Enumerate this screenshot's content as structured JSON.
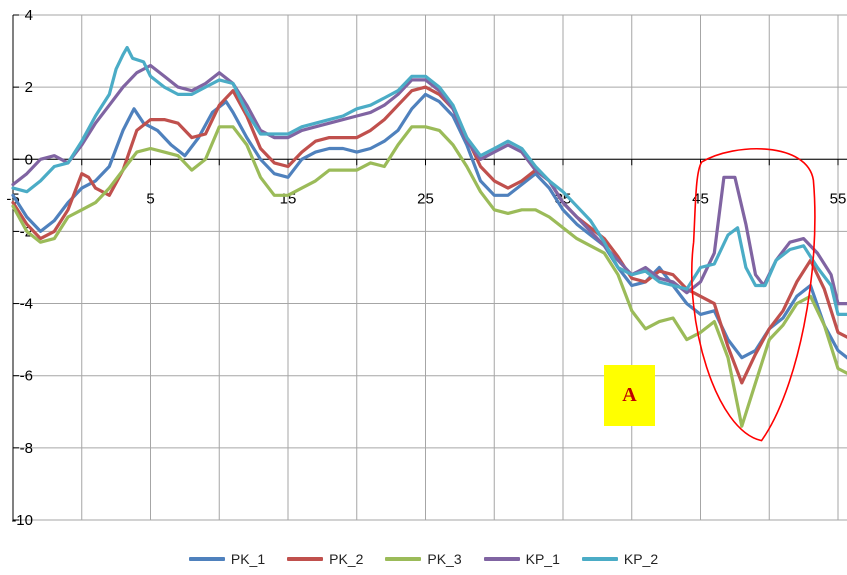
{
  "chart_data": {
    "type": "line",
    "xlim": [
      -5,
      55
    ],
    "ylim": [
      -10,
      4
    ],
    "x_ticks": [
      -5,
      5,
      15,
      25,
      35,
      45,
      55
    ],
    "y_ticks": [
      4,
      2,
      0,
      -2,
      -4,
      -6,
      -8,
      -10
    ],
    "x_tick_labels": [
      "-5",
      "5",
      "15",
      "25",
      "35",
      "45",
      "55"
    ],
    "y_tick_labels": [
      "4",
      "2",
      "0",
      "-2",
      "-4",
      "-6",
      "-8",
      "-10"
    ],
    "grid": true,
    "legend_position": "bottom",
    "annotation_label": "A",
    "highlight_region": {
      "x_range": [
        44.5,
        53.5
      ],
      "y_range": [
        -7.8,
        0.2
      ],
      "color": "#ff0000"
    },
    "series": [
      {
        "name": "PK_1",
        "color": "#4f81bd",
        "points": [
          [
            -5,
            -1
          ],
          [
            -4,
            -1.6
          ],
          [
            -3,
            -2.0
          ],
          [
            -2,
            -1.7
          ],
          [
            -1,
            -1.2
          ],
          [
            0,
            -0.8
          ],
          [
            1,
            -0.6
          ],
          [
            2,
            -0.2
          ],
          [
            3,
            0.8
          ],
          [
            3.8,
            1.4
          ],
          [
            4.5,
            1.0
          ],
          [
            5.5,
            0.8
          ],
          [
            6.5,
            0.4
          ],
          [
            7.5,
            0.1
          ],
          [
            8.5,
            0.6
          ],
          [
            9.5,
            1.3
          ],
          [
            10.5,
            1.6
          ],
          [
            11,
            1.3
          ],
          [
            12,
            0.6
          ],
          [
            13,
            0
          ],
          [
            14,
            -0.4
          ],
          [
            15,
            -0.5
          ],
          [
            16,
            0
          ],
          [
            17,
            0.2
          ],
          [
            18,
            0.3
          ],
          [
            19,
            0.3
          ],
          [
            20,
            0.2
          ],
          [
            21,
            0.3
          ],
          [
            22,
            0.5
          ],
          [
            23,
            0.8
          ],
          [
            24,
            1.4
          ],
          [
            25,
            1.8
          ],
          [
            26,
            1.6
          ],
          [
            27,
            1.2
          ],
          [
            28,
            0.4
          ],
          [
            29,
            -0.6
          ],
          [
            30,
            -1.0
          ],
          [
            31,
            -1.0
          ],
          [
            32,
            -0.7
          ],
          [
            33,
            -0.4
          ],
          [
            34,
            -0.8
          ],
          [
            35,
            -1.4
          ],
          [
            36,
            -1.8
          ],
          [
            37,
            -2.1
          ],
          [
            38,
            -2.4
          ],
          [
            39,
            -3.0
          ],
          [
            40,
            -3.5
          ],
          [
            41,
            -3.4
          ],
          [
            42,
            -3.0
          ],
          [
            43,
            -3.5
          ],
          [
            44,
            -4.0
          ],
          [
            45,
            -4.3
          ],
          [
            46,
            -4.2
          ],
          [
            47,
            -5.0
          ],
          [
            48,
            -5.5
          ],
          [
            49,
            -5.3
          ],
          [
            50,
            -4.7
          ],
          [
            51,
            -4.4
          ],
          [
            52,
            -3.8
          ],
          [
            53,
            -3.5
          ],
          [
            54,
            -4.6
          ],
          [
            55,
            -5.3
          ],
          [
            56,
            -5.6
          ]
        ]
      },
      {
        "name": "PK_2",
        "color": "#c0504d",
        "points": [
          [
            -5,
            -1.2
          ],
          [
            -4,
            -1.8
          ],
          [
            -3,
            -2.2
          ],
          [
            -2,
            -2.0
          ],
          [
            -1,
            -1.4
          ],
          [
            0,
            -0.4
          ],
          [
            0.5,
            -0.5
          ],
          [
            1,
            -0.8
          ],
          [
            2,
            -1.0
          ],
          [
            3,
            -0.3
          ],
          [
            4,
            0.8
          ],
          [
            5,
            1.1
          ],
          [
            6,
            1.1
          ],
          [
            7,
            1.0
          ],
          [
            8,
            0.6
          ],
          [
            9,
            0.7
          ],
          [
            10,
            1.5
          ],
          [
            11,
            1.9
          ],
          [
            12,
            1.2
          ],
          [
            13,
            0.3
          ],
          [
            14,
            -0.1
          ],
          [
            15,
            -0.2
          ],
          [
            16,
            0.2
          ],
          [
            17,
            0.5
          ],
          [
            18,
            0.6
          ],
          [
            19,
            0.6
          ],
          [
            20,
            0.6
          ],
          [
            21,
            0.8
          ],
          [
            22,
            1.1
          ],
          [
            23,
            1.5
          ],
          [
            24,
            1.9
          ],
          [
            25,
            2.0
          ],
          [
            26,
            1.8
          ],
          [
            27,
            1.4
          ],
          [
            28,
            0.6
          ],
          [
            29,
            -0.2
          ],
          [
            30,
            -0.6
          ],
          [
            31,
            -0.8
          ],
          [
            32,
            -0.6
          ],
          [
            33,
            -0.3
          ],
          [
            34,
            -0.6
          ],
          [
            35,
            -1.2
          ],
          [
            36,
            -1.6
          ],
          [
            37,
            -1.9
          ],
          [
            38,
            -2.2
          ],
          [
            39,
            -2.7
          ],
          [
            40,
            -3.3
          ],
          [
            41,
            -3.4
          ],
          [
            42,
            -3.1
          ],
          [
            43,
            -3.2
          ],
          [
            44,
            -3.6
          ],
          [
            45,
            -3.8
          ],
          [
            46,
            -4.0
          ],
          [
            47,
            -5.2
          ],
          [
            48,
            -6.2
          ],
          [
            49,
            -5.4
          ],
          [
            50,
            -4.7
          ],
          [
            51,
            -4.2
          ],
          [
            52,
            -3.4
          ],
          [
            53,
            -2.8
          ],
          [
            54,
            -3.6
          ],
          [
            55,
            -4.8
          ],
          [
            56,
            -5.0
          ]
        ]
      },
      {
        "name": "PK_3",
        "color": "#9bbb59",
        "points": [
          [
            -5,
            -1.3
          ],
          [
            -4,
            -2.0
          ],
          [
            -3,
            -2.3
          ],
          [
            -2,
            -2.2
          ],
          [
            -1,
            -1.6
          ],
          [
            0,
            -1.4
          ],
          [
            1,
            -1.2
          ],
          [
            2,
            -0.8
          ],
          [
            3,
            -0.3
          ],
          [
            4,
            0.2
          ],
          [
            5,
            0.3
          ],
          [
            6,
            0.2
          ],
          [
            7,
            0.1
          ],
          [
            8,
            -0.3
          ],
          [
            9,
            0
          ],
          [
            10,
            0.9
          ],
          [
            11,
            0.9
          ],
          [
            12,
            0.4
          ],
          [
            13,
            -0.5
          ],
          [
            14,
            -1.0
          ],
          [
            15,
            -1.0
          ],
          [
            16,
            -0.8
          ],
          [
            17,
            -0.6
          ],
          [
            18,
            -0.3
          ],
          [
            19,
            -0.3
          ],
          [
            20,
            -0.3
          ],
          [
            21,
            -0.1
          ],
          [
            22,
            -0.2
          ],
          [
            23,
            0.4
          ],
          [
            24,
            0.9
          ],
          [
            25,
            0.9
          ],
          [
            26,
            0.8
          ],
          [
            27,
            0.4
          ],
          [
            28,
            -0.2
          ],
          [
            29,
            -0.9
          ],
          [
            30,
            -1.4
          ],
          [
            31,
            -1.5
          ],
          [
            32,
            -1.4
          ],
          [
            33,
            -1.4
          ],
          [
            34,
            -1.6
          ],
          [
            35,
            -1.9
          ],
          [
            36,
            -2.2
          ],
          [
            37,
            -2.4
          ],
          [
            38,
            -2.6
          ],
          [
            39,
            -3.2
          ],
          [
            40,
            -4.2
          ],
          [
            41,
            -4.7
          ],
          [
            42,
            -4.5
          ],
          [
            43,
            -4.4
          ],
          [
            44,
            -5.0
          ],
          [
            45,
            -4.8
          ],
          [
            46,
            -4.5
          ],
          [
            47,
            -5.5
          ],
          [
            48,
            -7.4
          ],
          [
            49,
            -6.2
          ],
          [
            50,
            -5.0
          ],
          [
            51,
            -4.6
          ],
          [
            52,
            -4.0
          ],
          [
            53,
            -3.8
          ],
          [
            54,
            -4.6
          ],
          [
            55,
            -5.8
          ],
          [
            56,
            -6.0
          ]
        ]
      },
      {
        "name": "KP_1",
        "color": "#8064a2",
        "points": [
          [
            -5,
            -0.7
          ],
          [
            -4,
            -0.4
          ],
          [
            -3,
            0
          ],
          [
            -2,
            0.1
          ],
          [
            -1,
            -0.1
          ],
          [
            0,
            0.4
          ],
          [
            1,
            1.0
          ],
          [
            2,
            1.5
          ],
          [
            3,
            2.0
          ],
          [
            4,
            2.4
          ],
          [
            5,
            2.6
          ],
          [
            6,
            2.3
          ],
          [
            7,
            2.0
          ],
          [
            8,
            1.9
          ],
          [
            9,
            2.1
          ],
          [
            10,
            2.4
          ],
          [
            11,
            2.1
          ],
          [
            12,
            1.5
          ],
          [
            13,
            0.8
          ],
          [
            14,
            0.6
          ],
          [
            15,
            0.6
          ],
          [
            16,
            0.8
          ],
          [
            17,
            0.9
          ],
          [
            18,
            1.0
          ],
          [
            19,
            1.1
          ],
          [
            20,
            1.2
          ],
          [
            21,
            1.3
          ],
          [
            22,
            1.5
          ],
          [
            23,
            1.8
          ],
          [
            24,
            2.2
          ],
          [
            25,
            2.2
          ],
          [
            26,
            1.9
          ],
          [
            27,
            1.4
          ],
          [
            28,
            0.5
          ],
          [
            29,
            0
          ],
          [
            30,
            0.2
          ],
          [
            31,
            0.4
          ],
          [
            32,
            0.2
          ],
          [
            33,
            -0.3
          ],
          [
            34,
            -0.6
          ],
          [
            35,
            -1.2
          ],
          [
            36,
            -1.6
          ],
          [
            37,
            -2.0
          ],
          [
            38,
            -2.4
          ],
          [
            39,
            -2.8
          ],
          [
            40,
            -3.2
          ],
          [
            41,
            -3.0
          ],
          [
            42,
            -3.3
          ],
          [
            43,
            -3.4
          ],
          [
            44,
            -3.7
          ],
          [
            45,
            -3.4
          ],
          [
            46,
            -2.6
          ],
          [
            46.7,
            -0.5
          ],
          [
            47.5,
            -0.5
          ],
          [
            48.3,
            -1.8
          ],
          [
            49,
            -3.2
          ],
          [
            49.6,
            -3.5
          ],
          [
            50.5,
            -2.8
          ],
          [
            51.5,
            -2.3
          ],
          [
            52.5,
            -2.2
          ],
          [
            53.5,
            -2.6
          ],
          [
            54.5,
            -3.2
          ],
          [
            55,
            -4.0
          ],
          [
            56,
            -4.0
          ]
        ]
      },
      {
        "name": "KP_2",
        "color": "#4bacc6",
        "points": [
          [
            -5,
            -0.8
          ],
          [
            -4,
            -0.9
          ],
          [
            -3,
            -0.6
          ],
          [
            -2,
            -0.2
          ],
          [
            -1,
            -0.1
          ],
          [
            0,
            0.5
          ],
          [
            1,
            1.2
          ],
          [
            2,
            1.8
          ],
          [
            2.5,
            2.5
          ],
          [
            3,
            2.9
          ],
          [
            3.3,
            3.1
          ],
          [
            3.7,
            2.8
          ],
          [
            4.5,
            2.7
          ],
          [
            5,
            2.3
          ],
          [
            6,
            2.0
          ],
          [
            7,
            1.8
          ],
          [
            8,
            1.8
          ],
          [
            9,
            2.0
          ],
          [
            10,
            2.2
          ],
          [
            11,
            2.1
          ],
          [
            12,
            1.3
          ],
          [
            13,
            0.7
          ],
          [
            14,
            0.7
          ],
          [
            15,
            0.7
          ],
          [
            16,
            0.9
          ],
          [
            17,
            1.0
          ],
          [
            18,
            1.1
          ],
          [
            19,
            1.2
          ],
          [
            20,
            1.4
          ],
          [
            21,
            1.5
          ],
          [
            22,
            1.7
          ],
          [
            23,
            1.9
          ],
          [
            24,
            2.3
          ],
          [
            25,
            2.3
          ],
          [
            26,
            2.0
          ],
          [
            27,
            1.5
          ],
          [
            28,
            0.6
          ],
          [
            29,
            0.1
          ],
          [
            30,
            0.3
          ],
          [
            31,
            0.5
          ],
          [
            32,
            0.3
          ],
          [
            33,
            -0.2
          ],
          [
            34,
            -0.6
          ],
          [
            35,
            -0.9
          ],
          [
            36,
            -1.3
          ],
          [
            37,
            -1.7
          ],
          [
            38,
            -2.3
          ],
          [
            39,
            -3.0
          ],
          [
            40,
            -3.2
          ],
          [
            41,
            -3.1
          ],
          [
            42,
            -3.4
          ],
          [
            43,
            -3.5
          ],
          [
            44,
            -3.6
          ],
          [
            45,
            -3.0
          ],
          [
            46,
            -2.9
          ],
          [
            47,
            -2.1
          ],
          [
            47.7,
            -1.9
          ],
          [
            48.3,
            -3.0
          ],
          [
            49,
            -3.5
          ],
          [
            49.7,
            -3.5
          ],
          [
            50.5,
            -2.8
          ],
          [
            51.5,
            -2.5
          ],
          [
            52.5,
            -2.4
          ],
          [
            53.5,
            -3.0
          ],
          [
            54.5,
            -3.5
          ],
          [
            55,
            -4.3
          ],
          [
            56,
            -4.3
          ]
        ]
      }
    ]
  }
}
